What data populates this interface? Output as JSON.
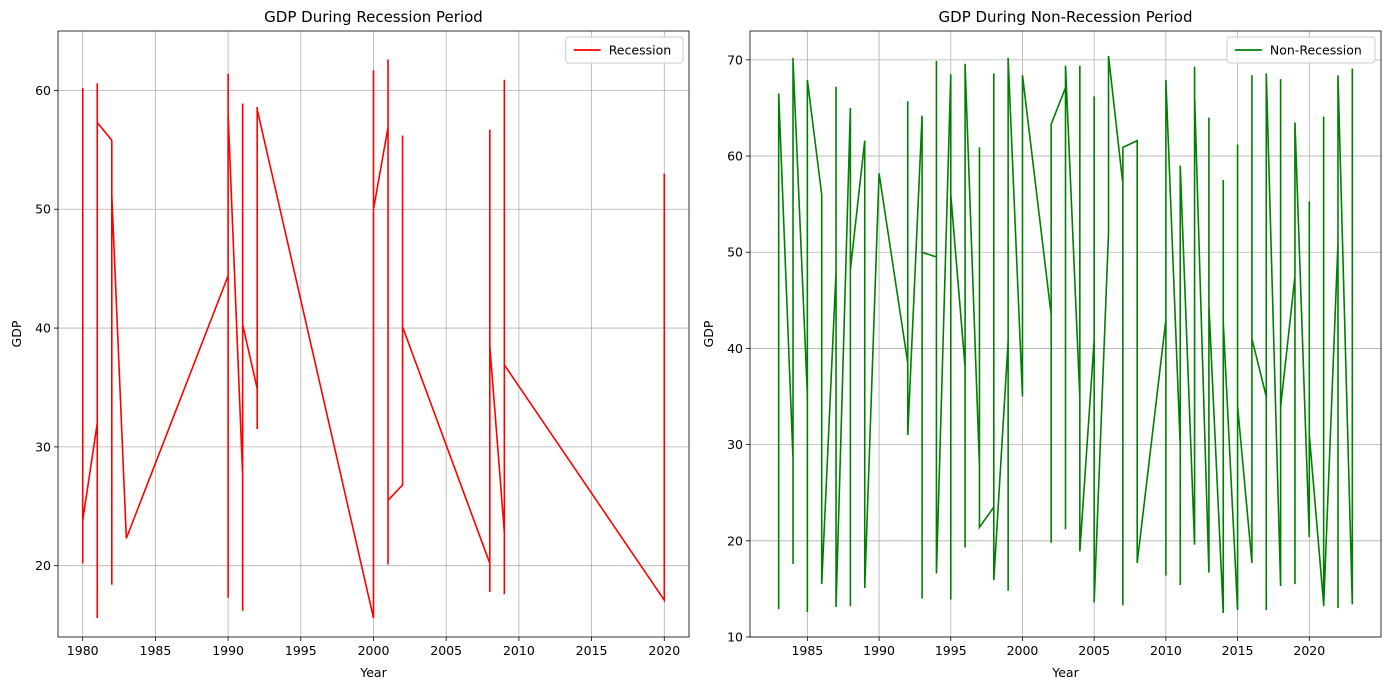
{
  "chart_data": [
    {
      "type": "line",
      "title": "GDP During Recession Period",
      "xlabel": "Year",
      "ylabel": "GDP",
      "xlim": [
        1978.3,
        2021.7
      ],
      "ylim": [
        14.0,
        65.0
      ],
      "xticks": [
        1980,
        1985,
        1990,
        1995,
        2000,
        2005,
        2010,
        2015,
        2020
      ],
      "yticks": [
        20,
        30,
        40,
        50,
        60
      ],
      "grid": true,
      "legend_position": "top-right",
      "series": [
        {
          "name": "Recession",
          "color": "#ff0000",
          "x": [
            1980,
            1980,
            1980,
            1980,
            1980,
            1980,
            1981,
            1981,
            1981,
            1981,
            1982,
            1982,
            1982,
            1982,
            1982,
            1983,
            1990,
            1990,
            1990,
            1990,
            1990,
            1991,
            1991,
            1991,
            1991,
            1991,
            1991,
            1991,
            1991,
            1991,
            1992,
            1992,
            1992,
            1992,
            2000,
            2000,
            2000,
            2000,
            2000,
            2000,
            2001,
            2001,
            2001,
            2001,
            2001,
            2001,
            2001,
            2001,
            2002,
            2002,
            2002,
            2008,
            2008,
            2008,
            2008,
            2008,
            2009,
            2009,
            2009,
            2009,
            2009,
            2009,
            2009,
            2020,
            2020,
            2020,
            2020,
            2020
          ],
          "y": [
            55.6,
            20.4,
            60.2,
            20.2,
            23.8,
            23.8,
            32.0,
            60.6,
            15.6,
            57.3,
            55.8,
            18.4,
            54.0,
            18.6,
            51.2,
            22.3,
            44.4,
            61.4,
            17.3,
            61.0,
            58.0,
            27.6,
            58.9,
            16.2,
            58.8,
            17.5,
            52.6,
            16.3,
            40.3,
            40.3,
            34.9,
            58.6,
            31.5,
            58.4,
            15.6,
            61.7,
            18.0,
            61.4,
            17.5,
            50.0,
            56.9,
            62.6,
            20.1,
            62.3,
            20.7,
            62.4,
            25.5,
            25.5,
            26.8,
            56.2,
            40.1,
            20.2,
            56.7,
            17.8,
            48.9,
            38.5,
            22.8,
            60.9,
            17.6,
            60.3,
            23.9,
            53.9,
            36.9,
            17.1,
            53.0,
            24.4,
            27.3,
            24.4
          ]
        }
      ]
    },
    {
      "type": "line",
      "title": "GDP During Non-Recession Period",
      "xlabel": "Year",
      "ylabel": "GDP",
      "xlim": [
        1981.0,
        2025.0
      ],
      "ylim": [
        10.0,
        73.0
      ],
      "xticks": [
        1985,
        1990,
        1995,
        2000,
        2005,
        2010,
        2015,
        2020
      ],
      "yticks": [
        10,
        20,
        30,
        40,
        50,
        60,
        70
      ],
      "grid": true,
      "legend_position": "top-right",
      "series": [
        {
          "name": "Non-Recession",
          "color": "#008000",
          "x": [
            1983,
            1983,
            1984,
            1984,
            1984,
            1984,
            1985,
            1985,
            1985,
            1986,
            1986,
            1987,
            1987,
            1987,
            1987,
            1988,
            1988,
            1988,
            1989,
            1989,
            1990,
            1992,
            1992,
            1992,
            1993,
            1993,
            1993,
            1993,
            1994,
            1994,
            1994,
            1995,
            1995,
            1995,
            1996,
            1996,
            1996,
            1996,
            1997,
            1997,
            1997,
            1998,
            1998,
            1998,
            1999,
            1999,
            1999,
            1999,
            2000,
            2000,
            2002,
            2002,
            2002,
            2003,
            2003,
            2003,
            2004,
            2004,
            2004,
            2005,
            2005,
            2005,
            2005,
            2006,
            2006,
            2007,
            2007,
            2007,
            2008,
            2008,
            2010,
            2010,
            2010,
            2011,
            2011,
            2011,
            2012,
            2012,
            2012,
            2013,
            2013,
            2013,
            2014,
            2014,
            2014,
            2015,
            2015,
            2015,
            2016,
            2016,
            2016,
            2017,
            2017,
            2017,
            2018,
            2018,
            2018,
            2019,
            2019,
            2019,
            2020,
            2020,
            2020,
            2021,
            2021,
            2021,
            2022,
            2022,
            2022,
            2023,
            2023
          ],
          "y": [
            12.9,
            66.5,
            28.5,
            70.2,
            17.6,
            70.0,
            35.2,
            12.6,
            67.9,
            56.0,
            15.5,
            48.0,
            13.1,
            67.2,
            13.2,
            65.0,
            13.2,
            48.2,
            61.6,
            15.1,
            58.2,
            38.5,
            65.7,
            31.0,
            64.2,
            14.0,
            64.0,
            50.0,
            49.5,
            69.9,
            16.6,
            68.5,
            13.9,
            56.0,
            38.0,
            69.6,
            19.3,
            69.4,
            27.8,
            60.9,
            21.4,
            23.5,
            68.6,
            15.9,
            40.8,
            70.2,
            14.8,
            70.1,
            35.0,
            68.4,
            43.5,
            19.8,
            63.3,
            67.1,
            21.2,
            69.4,
            34.9,
            69.4,
            18.9,
            40.9,
            13.6,
            66.2,
            13.7,
            52.0,
            70.4,
            57.1,
            13.3,
            60.9,
            61.6,
            17.7,
            43.0,
            16.4,
            67.9,
            29.9,
            15.4,
            59.0,
            19.6,
            69.3,
            66.3,
            16.7,
            64.0,
            44.5,
            12.5,
            57.5,
            42.7,
            12.8,
            61.2,
            34.0,
            17.7,
            68.4,
            41.0,
            35.0,
            12.8,
            68.6,
            15.3,
            68.0,
            33.9,
            47.5,
            15.5,
            63.5,
            20.4,
            55.3,
            31.0,
            13.4,
            64.1,
            13.2,
            51.0,
            13.0,
            68.4,
            13.4,
            69.1
          ]
        }
      ]
    }
  ]
}
